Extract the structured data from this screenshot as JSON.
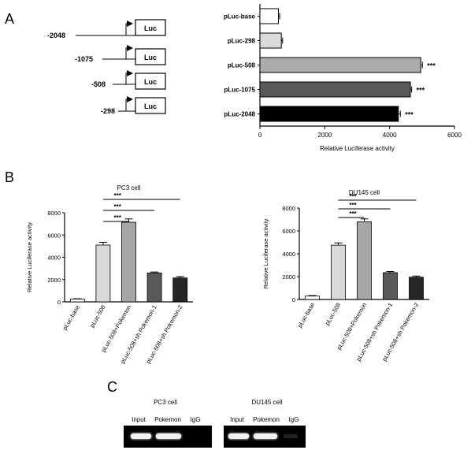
{
  "panels": {
    "a": "A",
    "b": "B",
    "c": "C"
  },
  "constructs": [
    {
      "position": "-2048",
      "gene": "Luc"
    },
    {
      "position": "-1075",
      "gene": "Luc"
    },
    {
      "position": "-508",
      "gene": "Luc"
    },
    {
      "position": "-298",
      "gene": "Luc"
    }
  ],
  "chart_data": [
    {
      "type": "bar",
      "orientation": "horizontal",
      "categories": [
        "pLuc-base",
        "pLuc-298",
        "pLuc-508",
        "pLuc-1075",
        "pLuc-2048"
      ],
      "values": [
        570,
        660,
        4960,
        4640,
        4270
      ],
      "errors": [
        40,
        40,
        50,
        40,
        60
      ],
      "significance": [
        "",
        "",
        "***",
        "***",
        "***"
      ],
      "colors": [
        "#ffffff",
        "#d9d9d9",
        "#ababab",
        "#595959",
        "#000000"
      ],
      "xlabel": "Relative Luciferase activity",
      "xlim": [
        0,
        6000
      ],
      "xticks": [
        "0",
        "2000",
        "4000",
        "6000"
      ]
    },
    {
      "type": "bar",
      "title": "PC3 cell",
      "categories": [
        "pLuc-base",
        "pLuc-508",
        "pLuc-508+Pokemon",
        "pLuc-508+sh Pokemon-1",
        "pLuc-508+sh Pokemon-2"
      ],
      "values": [
        250,
        5100,
        7150,
        2600,
        2150
      ],
      "errors": [
        30,
        250,
        300,
        80,
        120
      ],
      "colors": [
        "#ffffff",
        "#d9d9d9",
        "#a6a6a6",
        "#595959",
        "#262626"
      ],
      "ylabel": "Relative Luciferase activity",
      "ylim": [
        0,
        8000
      ],
      "yticks": [
        "0",
        "2000",
        "4000",
        "6000",
        "8000"
      ],
      "significance": [
        {
          "from": "pLuc-508",
          "to": "pLuc-508+Pokemon",
          "label": "***"
        },
        {
          "from": "pLuc-508",
          "to": "pLuc-508+sh Pokemon-1",
          "label": "***"
        },
        {
          "from": "pLuc-508",
          "to": "pLuc-508+sh Pokemon-2",
          "label": "***"
        }
      ]
    },
    {
      "type": "bar",
      "title": "DU145 cell",
      "categories": [
        "pLuc-base",
        "pLuc-508",
        "pLuc-508+Pokemon",
        "pLuc-508+sh Pokemon-1",
        "pLuc-508+sh Pokemon-2"
      ],
      "values": [
        300,
        4750,
        6800,
        2350,
        1950
      ],
      "errors": [
        40,
        200,
        250,
        100,
        100
      ],
      "colors": [
        "#ffffff",
        "#d9d9d9",
        "#a6a6a6",
        "#595959",
        "#262626"
      ],
      "ylabel": "Relative Luciferase activity",
      "ylim": [
        0,
        8000
      ],
      "yticks": [
        "0",
        "2000",
        "4000",
        "6000",
        "8000"
      ],
      "significance": [
        {
          "from": "pLuc-508",
          "to": "pLuc-508+Pokemon",
          "label": "***"
        },
        {
          "from": "pLuc-508",
          "to": "pLuc-508+sh Pokemon-1",
          "label": "***"
        },
        {
          "from": "pLuc-508",
          "to": "pLuc-508+sh Pokemon-2",
          "label": "***"
        }
      ]
    }
  ],
  "gels": [
    {
      "title": "PC3 cell",
      "lanes": [
        "Input",
        "Pokemon",
        "IgG"
      ],
      "band_intensity": [
        1,
        1,
        0
      ]
    },
    {
      "title": "DU145 cell",
      "lanes": [
        "Input",
        "Pokemon",
        "IgG"
      ],
      "band_intensity": [
        1,
        1,
        0.1
      ]
    }
  ]
}
